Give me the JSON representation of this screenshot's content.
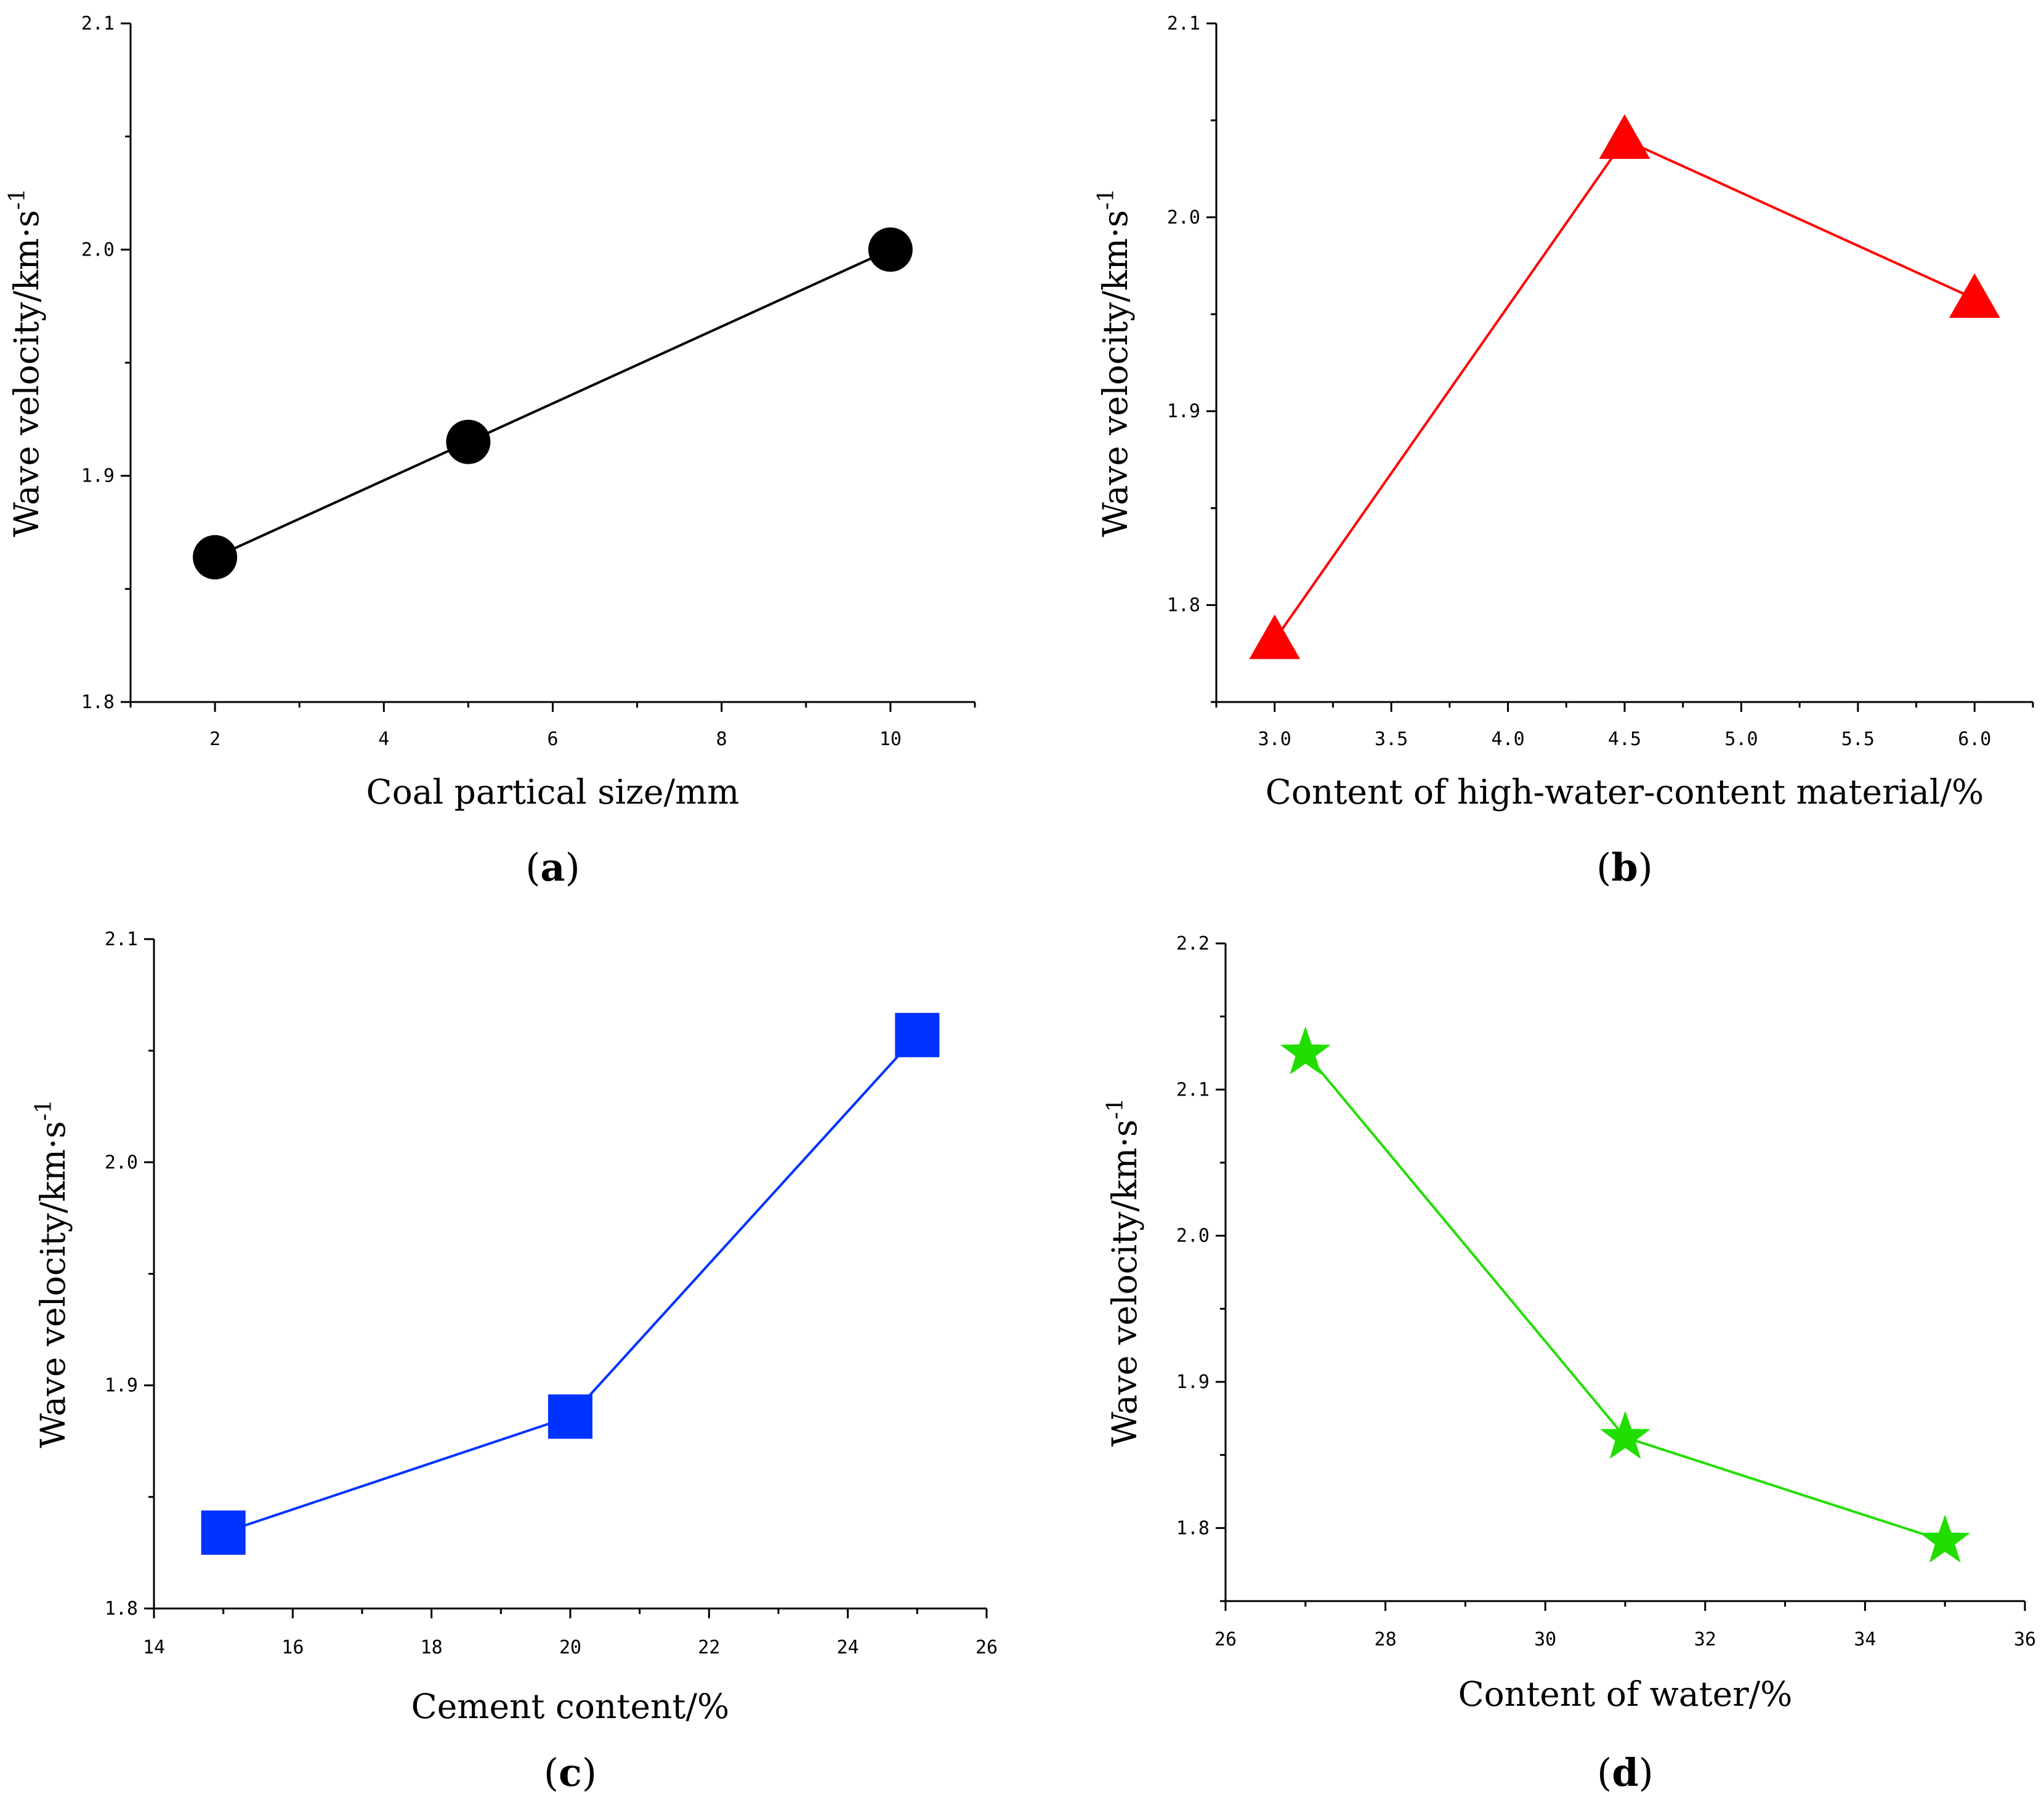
{
  "figure": {
    "panel_count": 4
  },
  "chart_data": [
    {
      "id": "a",
      "type": "line",
      "panel_label": "a",
      "xlabel": "Coal partical size/mm",
      "ylabel": "Wave velocity/km·s",
      "ylabel_sup": "-1",
      "xlim": [
        1,
        11
      ],
      "ylim": [
        1.8,
        2.1
      ],
      "xticks": [
        "2",
        "4",
        "6",
        "8",
        "10"
      ],
      "xtick_values": [
        2,
        4,
        6,
        8,
        10
      ],
      "yticks": [
        "1.8",
        "1.9",
        "2.0",
        "2.1"
      ],
      "ytick_values": [
        1.8,
        1.9,
        2.0,
        2.1
      ],
      "series": [
        {
          "name": "wave velocity",
          "marker": "circle",
          "color": "#000000",
          "x": [
            2,
            5,
            10
          ],
          "y": [
            1.864,
            1.915,
            2.0
          ]
        }
      ]
    },
    {
      "id": "b",
      "type": "line",
      "panel_label": "b",
      "xlabel": "Content of high-water-content material/%",
      "ylabel": "Wave velocity/km·s",
      "ylabel_sup": "-1",
      "xlim": [
        2.75,
        6.25
      ],
      "ylim": [
        1.75,
        2.1
      ],
      "xticks": [
        "3.0",
        "3.5",
        "4.0",
        "4.5",
        "5.0",
        "5.5",
        "6.0"
      ],
      "xtick_values": [
        3.0,
        3.5,
        4.0,
        4.5,
        5.0,
        5.5,
        6.0
      ],
      "yticks": [
        "1.8",
        "1.9",
        "2.0",
        "2.1"
      ],
      "ytick_values": [
        1.8,
        1.9,
        2.0,
        2.1
      ],
      "series": [
        {
          "name": "wave velocity",
          "marker": "triangle",
          "color": "#ff0000",
          "x": [
            3.0,
            4.5,
            6.0
          ],
          "y": [
            1.782,
            2.04,
            1.958
          ]
        }
      ]
    },
    {
      "id": "c",
      "type": "line",
      "panel_label": "c",
      "xlabel": "Cement content/%",
      "ylabel": "Wave velocity/km·s",
      "ylabel_sup": "-1",
      "xlim": [
        14,
        26
      ],
      "ylim": [
        1.8,
        2.1
      ],
      "xticks": [
        "14",
        "16",
        "18",
        "20",
        "22",
        "24",
        "26"
      ],
      "xtick_values": [
        14,
        16,
        18,
        20,
        22,
        24,
        26
      ],
      "yticks": [
        "1.8",
        "1.9",
        "2.0",
        "2.1"
      ],
      "ytick_values": [
        1.8,
        1.9,
        2.0,
        2.1
      ],
      "series": [
        {
          "name": "wave velocity",
          "marker": "square",
          "color": "#0033ff",
          "x": [
            15,
            20,
            25
          ],
          "y": [
            1.834,
            1.886,
            2.057
          ]
        }
      ]
    },
    {
      "id": "d",
      "type": "line",
      "panel_label": "d",
      "xlabel": "Content of water/%",
      "ylabel": "Wave velocity/km·s",
      "ylabel_sup": "-1",
      "xlim": [
        26,
        36
      ],
      "ylim": [
        1.75,
        2.2
      ],
      "xticks": [
        "26",
        "28",
        "30",
        "32",
        "34",
        "36"
      ],
      "xtick_values": [
        26,
        28,
        30,
        32,
        34,
        36
      ],
      "yticks": [
        "1.8",
        "1.9",
        "2.0",
        "2.1",
        "2.2"
      ],
      "ytick_values": [
        1.8,
        1.9,
        2.0,
        2.1,
        2.2
      ],
      "series": [
        {
          "name": "wave velocity",
          "marker": "star",
          "color": "#22dd00",
          "x": [
            27,
            31,
            35
          ],
          "y": [
            2.125,
            1.862,
            1.791
          ]
        }
      ]
    }
  ]
}
